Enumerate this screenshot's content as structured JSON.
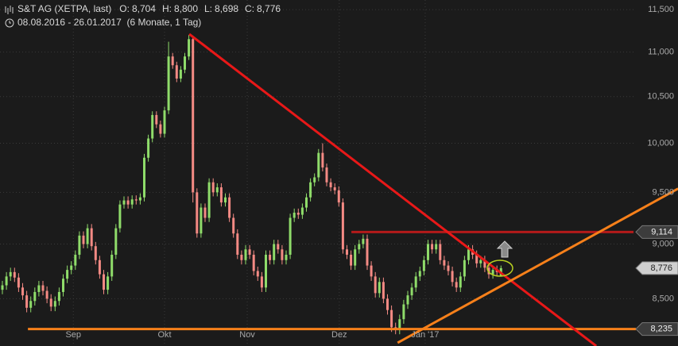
{
  "chart_data": {
    "type": "candlestick",
    "title": "S&T AG (XETPA, last)",
    "header_values": [
      {
        "name": "O:",
        "value": 8704,
        "label": "8,704"
      },
      {
        "name": "H:",
        "value": 8800,
        "label": "8,800"
      },
      {
        "name": "L:",
        "value": 8698,
        "label": "8,698"
      },
      {
        "name": "C:",
        "value": 8776,
        "label": "8,776"
      }
    ],
    "subtitle": "08.08.2016 - 26.01.2017  (6 Monate, 1 Tag)",
    "log_scale": true,
    "grid": true,
    "up_color": "#8fdc6a",
    "down_color": "#f48a84",
    "xlim": [
      -0.59,
      166.67
    ],
    "ylim": [
      8090,
      11616
    ],
    "xticks": [
      {
        "value": 17.5,
        "label": "Sep"
      },
      {
        "value": 40,
        "label": "Okt"
      },
      {
        "value": 60.4,
        "label": "Nov"
      },
      {
        "value": 83.1,
        "label": "Dez"
      },
      {
        "value": 104.3,
        "label": "Jan '17"
      }
    ],
    "yticks": [
      {
        "value": 8500,
        "label": "8,500"
      },
      {
        "value": 9000,
        "label": "9,000"
      },
      {
        "value": 9500,
        "label": "9,500"
      },
      {
        "value": 10000,
        "label": "10,000"
      },
      {
        "value": 10500,
        "label": "10,500"
      },
      {
        "value": 11000,
        "label": "11,000"
      },
      {
        "value": 11500,
        "label": "11,500"
      }
    ],
    "open": [
      8580,
      8620,
      8700,
      8740,
      8690,
      8600,
      8530,
      8420,
      8480,
      8560,
      8620,
      8570,
      8500,
      8430,
      8480,
      8560,
      8680,
      8760,
      8800,
      8900,
      9080,
      9000,
      9150,
      8980,
      8850,
      8720,
      8580,
      8700,
      8900,
      9150,
      9380,
      9420,
      9380,
      9430,
      9420,
      9450,
      9850,
      10050,
      10300,
      10200,
      10100,
      10350,
      10950,
      10850,
      10700,
      10800,
      10950,
      11150,
      9500,
      9100,
      9350,
      9250,
      9600,
      9500,
      9550,
      9400,
      9450,
      9250,
      9100,
      8900,
      8850,
      8950,
      8900,
      8750,
      8700,
      8600,
      8900,
      8850,
      9000,
      8950,
      8850,
      8900,
      9250,
      9300,
      9280,
      9350,
      9450,
      9600,
      9650,
      9900,
      9750,
      9600,
      9550,
      9520,
      9400,
      8950,
      8900,
      8800,
      8950,
      9000,
      9050,
      8800,
      8700,
      8550,
      8650,
      8500,
      8400,
      8250,
      8230,
      8320,
      8450,
      8530,
      8600,
      8700,
      8750,
      8850,
      9000,
      8950,
      9000,
      8850,
      8800,
      8750,
      8650,
      8600,
      8700,
      8850,
      8950,
      8900,
      8820,
      8850,
      8780,
      8720,
      8760,
      8704
    ],
    "high": [
      8660,
      8740,
      8780,
      8780,
      8730,
      8640,
      8570,
      8520,
      8600,
      8660,
      8660,
      8610,
      8540,
      8520,
      8600,
      8720,
      8800,
      8840,
      8940,
      9120,
      9120,
      9190,
      9190,
      9020,
      8890,
      8760,
      8740,
      8940,
      9190,
      9420,
      9460,
      9460,
      9470,
      9470,
      9490,
      9890,
      10090,
      10340,
      10340,
      10240,
      10390,
      11120,
      10990,
      10890,
      10840,
      10990,
      11200,
      11190,
      9540,
      9390,
      9390,
      9640,
      9640,
      9590,
      9590,
      9490,
      9490,
      9290,
      9140,
      8940,
      8990,
      8990,
      8940,
      8790,
      8740,
      8940,
      8940,
      9040,
      9040,
      8990,
      8940,
      9290,
      9340,
      9340,
      9390,
      9490,
      9640,
      9690,
      9940,
      10000,
      9790,
      9640,
      9590,
      9560,
      9440,
      8990,
      8940,
      8990,
      9040,
      9090,
      9090,
      8840,
      8740,
      8690,
      8690,
      8540,
      8440,
      8290,
      8360,
      8490,
      8570,
      8640,
      8740,
      8790,
      8890,
      9040,
      9040,
      9040,
      9040,
      8890,
      8840,
      8790,
      8690,
      8740,
      8890,
      8990,
      8990,
      8940,
      8890,
      8890,
      8820,
      8800,
      8800,
      8800
    ],
    "low": [
      8540,
      8580,
      8660,
      8650,
      8560,
      8490,
      8380,
      8380,
      8440,
      8520,
      8530,
      8460,
      8390,
      8390,
      8440,
      8520,
      8640,
      8720,
      8760,
      8860,
      8960,
      8960,
      8940,
      8810,
      8680,
      8540,
      8540,
      8660,
      8860,
      9110,
      9340,
      9340,
      9340,
      9380,
      9380,
      9410,
      9810,
      10010,
      10160,
      10060,
      10060,
      10310,
      10810,
      10660,
      10660,
      10760,
      10910,
      9400,
      9060,
      9060,
      9210,
      9210,
      9460,
      9460,
      9360,
      9360,
      9210,
      9060,
      8860,
      8810,
      8810,
      8860,
      8710,
      8660,
      8560,
      8560,
      8810,
      8810,
      8910,
      8810,
      8810,
      8860,
      9210,
      9240,
      9240,
      9310,
      9410,
      9560,
      9610,
      9710,
      9560,
      9510,
      9480,
      9360,
      8910,
      8860,
      8760,
      8760,
      8910,
      8960,
      8760,
      8660,
      8510,
      8510,
      8460,
      8360,
      8210,
      8190,
      8190,
      8280,
      8410,
      8490,
      8560,
      8660,
      8710,
      8810,
      8910,
      8910,
      8810,
      8760,
      8710,
      8610,
      8560,
      8560,
      8660,
      8810,
      8860,
      8780,
      8780,
      8740,
      8680,
      8680,
      8700,
      8698
    ],
    "close": [
      8620,
      8700,
      8740,
      8690,
      8600,
      8530,
      8420,
      8480,
      8560,
      8620,
      8570,
      8500,
      8430,
      8480,
      8560,
      8680,
      8760,
      8800,
      8900,
      9080,
      9000,
      9150,
      8980,
      8850,
      8720,
      8580,
      8700,
      8900,
      9150,
      9380,
      9420,
      9380,
      9430,
      9420,
      9450,
      9850,
      10050,
      10300,
      10200,
      10100,
      10350,
      10950,
      10850,
      10700,
      10800,
      10950,
      11150,
      9500,
      9100,
      9350,
      9250,
      9600,
      9500,
      9550,
      9400,
      9450,
      9250,
      9100,
      8900,
      8850,
      8950,
      8900,
      8750,
      8700,
      8600,
      8900,
      8850,
      9000,
      8950,
      8850,
      8900,
      9250,
      9300,
      9280,
      9350,
      9450,
      9600,
      9650,
      9900,
      9750,
      9600,
      9550,
      9520,
      9400,
      8950,
      8900,
      8800,
      8950,
      9000,
      9050,
      8800,
      8700,
      8550,
      8650,
      8500,
      8400,
      8250,
      8230,
      8320,
      8450,
      8530,
      8600,
      8700,
      8750,
      8850,
      9000,
      8950,
      9000,
      8850,
      8800,
      8750,
      8650,
      8600,
      8700,
      8850,
      8950,
      8900,
      8820,
      8850,
      8780,
      8720,
      8760,
      8740,
      8776
    ],
    "trend_lines": [
      {
        "start": [
          46.1,
          11210
        ],
        "end": [
          146.5,
          8090
        ],
        "color": "#e81818"
      },
      {
        "start": [
          97.5,
          8117
        ],
        "end": [
          166.7,
          9537
        ],
        "color": "#f7801a"
      }
    ],
    "levels": [
      {
        "value": 9114,
        "label": "9,114",
        "from": 86.1,
        "to": 155.7,
        "color": "#b41a1a",
        "tag": "dark"
      },
      {
        "value": 8776,
        "label": "8,776",
        "tag": "light"
      },
      {
        "value": 8235,
        "label": "8,235",
        "from": 6.3,
        "to": 156.3,
        "color": "#f7801a",
        "tag": "dark"
      }
    ]
  }
}
